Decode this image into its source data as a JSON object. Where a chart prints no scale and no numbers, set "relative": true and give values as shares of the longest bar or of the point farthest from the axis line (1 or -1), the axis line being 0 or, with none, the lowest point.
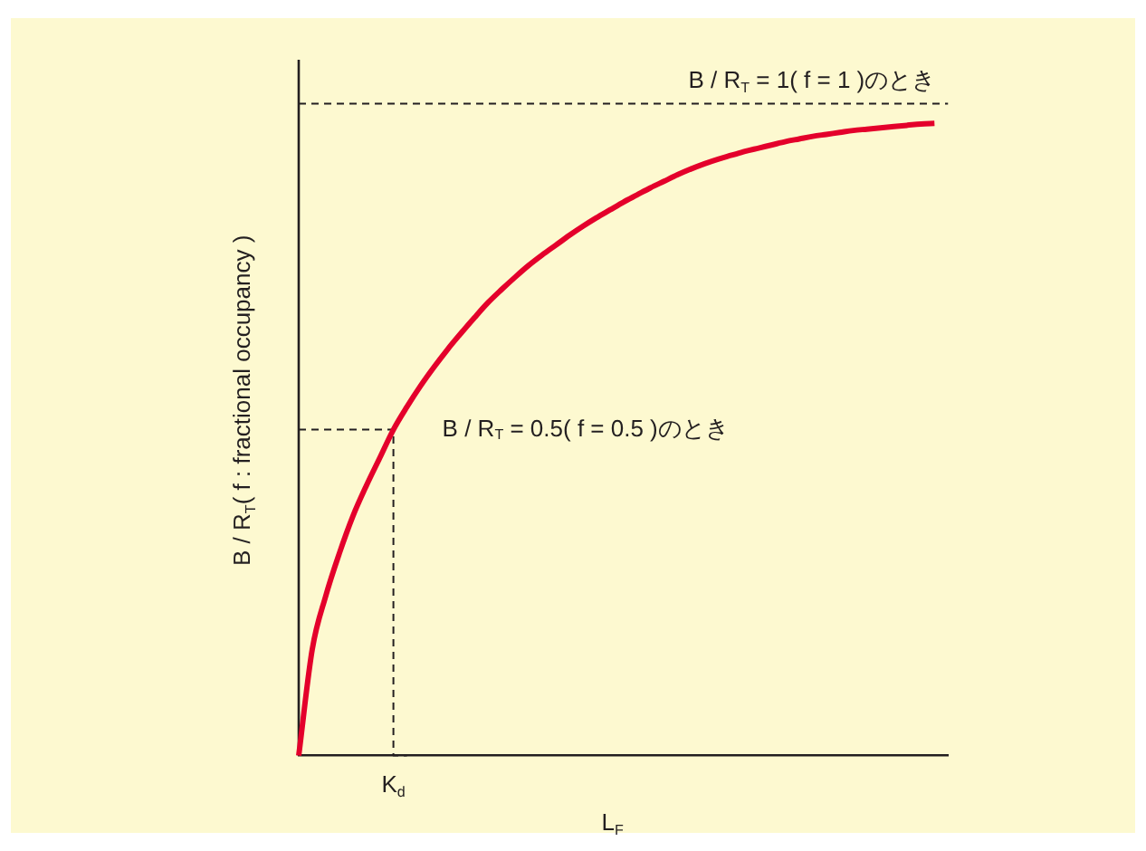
{
  "chart_data": {
    "type": "line",
    "relative": true,
    "xlabel": "L$_{F}$",
    "ylabel": "B / R$_{T}$( f : fractional occupancy )",
    "categories": [
      null,
      null,
      null,
      null,
      null,
      null,
      null,
      null,
      null,
      null,
      null,
      null,
      null,
      null,
      null,
      null,
      null,
      null,
      null,
      null,
      null,
      null,
      null,
      null,
      null,
      null,
      null,
      null,
      null,
      null,
      null,
      null,
      null,
      null,
      null,
      null,
      null,
      null,
      null,
      null,
      null,
      null,
      null,
      null,
      null,
      null,
      null,
      null,
      null
    ],
    "series": [
      {
        "color": "#e4002b",
        "values": [
          0,
          0.163,
          0.245,
          0.31,
          0.367,
          0.414,
          0.457,
          0.5,
          0.535,
          0.567,
          0.596,
          0.623,
          0.648,
          0.672,
          0.695,
          0.715,
          0.734,
          0.752,
          0.768,
          0.783,
          0.798,
          0.812,
          0.825,
          0.837,
          0.849,
          0.86,
          0.871,
          0.881,
          0.891,
          0.9,
          0.908,
          0.915,
          0.921,
          0.927,
          0.932,
          0.937,
          0.942,
          0.946,
          0.95,
          0.953,
          0.956,
          0.959,
          0.961,
          0.963,
          0.965,
          0.967,
          0.969,
          0.97,
          null
        ]
      },
      {
        "type": "line",
        "name": "B / R$_{T}$ = 1( f = 1 )のとき",
        "color": "#231f20",
        "line_style": "dashed",
        "values": [
          1,
          1,
          1,
          1,
          1,
          1,
          1,
          1,
          1,
          1,
          1,
          1,
          1,
          1,
          1,
          1,
          1,
          1,
          1,
          1,
          1,
          1,
          1,
          1,
          1,
          1,
          1,
          1,
          1,
          1,
          1,
          1,
          1,
          1,
          1,
          1,
          1,
          1,
          1,
          1,
          1,
          1,
          1,
          1,
          1,
          1,
          1,
          1,
          1
        ]
      },
      {
        "type": "step",
        "name": "B / R$_{T}$ = 0.5( f = 0.5 )のとき",
        "color": "#231f20",
        "line_style": "dashed",
        "values": [
          0.5,
          0.5,
          0.5,
          0.5,
          0.5,
          0.5,
          0.5,
          0.5,
          0,
          null,
          null,
          null,
          null,
          null,
          null,
          null,
          null,
          null,
          null,
          null,
          null,
          null,
          null,
          null,
          null,
          null,
          null,
          null,
          null,
          null,
          null,
          null,
          null,
          null,
          null,
          null,
          null,
          null,
          null,
          null,
          null,
          null,
          null,
          null,
          null,
          null,
          null,
          null,
          null
        ]
      }
    ],
    "annotations": [
      "K$_{d}$"
    ]
  }
}
